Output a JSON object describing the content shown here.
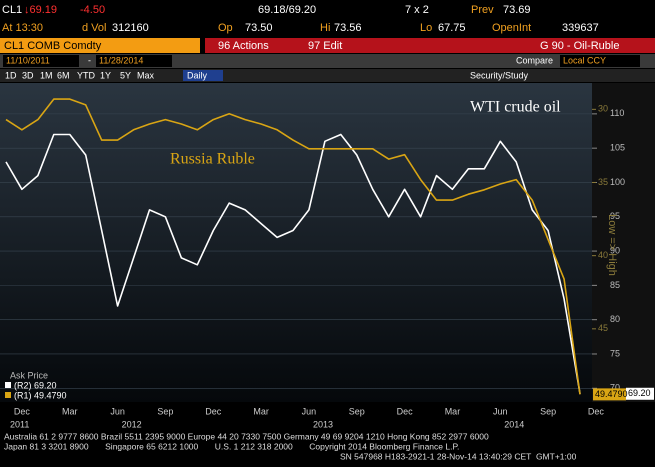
{
  "header": {
    "ticker": "CL1",
    "last": "↓69.19",
    "change": "-4.50",
    "bid_ask": "69.18/69.20",
    "size": "7 x 2",
    "prev_label": "Prev",
    "prev": "73.69",
    "time": "At 13:30",
    "vol_label": "d Vol",
    "vol": "312160",
    "open_label": "Op",
    "open": "73.50",
    "high_label": "Hi",
    "high": "73.56",
    "low_label": "Lo",
    "low": "67.75",
    "oi_label": "OpenInt",
    "oi": "339637",
    "security": "CL1 COMB Comdty",
    "actions": "96 Actions",
    "edit": "97 Edit",
    "page": "G 90 - Oil-Ruble",
    "start_date": "11/10/2011",
    "date_sep": "-",
    "end_date": "11/28/2014",
    "compare": "Compare",
    "currency": "Local CCY",
    "ranges": [
      "1D",
      "3D",
      "1M",
      "6M",
      "YTD",
      "1Y",
      "5Y",
      "Max"
    ],
    "period": "Daily",
    "study": "Security/Study"
  },
  "chart_data": {
    "type": "line",
    "annotation": "Low => High",
    "legend_title": "Ask Price",
    "legend_labels": [
      "(R2) 69.20",
      "(R1) 49.4790"
    ],
    "categories": [
      null,
      "Dec",
      null,
      null,
      "Mar",
      null,
      null,
      "Jun",
      null,
      null,
      "Sep",
      null,
      null,
      "Dec",
      null,
      null,
      "Mar",
      null,
      null,
      "Jun",
      null,
      null,
      "Sep",
      null,
      null,
      "Dec",
      null,
      null,
      "Mar",
      null,
      null,
      "Jun",
      null,
      null,
      "Sep",
      null,
      null,
      "Dec"
    ],
    "years": [
      "2011",
      "2012",
      "2013",
      "2014"
    ],
    "series": [
      {
        "name": "WTI crude oil",
        "color": "#ffffff",
        "axis": "y",
        "end_label": "69.20",
        "values": [
          103,
          99,
          101,
          107,
          107,
          104,
          93,
          82,
          89,
          96,
          95,
          89,
          88,
          93,
          97,
          96,
          94,
          92,
          93,
          96,
          106,
          107,
          104,
          99,
          95,
          99,
          95,
          101,
          99,
          102,
          102,
          106,
          103,
          96,
          93,
          83,
          69.2,
          null
        ]
      },
      {
        "name": "Russia Ruble",
        "color": "#d9a514",
        "axis": "y2",
        "end_label": "49.4790",
        "values": [
          30.7,
          31.4,
          30.7,
          29.3,
          29.3,
          29.7,
          32.1,
          32.1,
          31.4,
          31.0,
          30.7,
          31.0,
          31.4,
          30.7,
          30.3,
          30.7,
          31.0,
          31.4,
          32.1,
          32.7,
          32.7,
          32.7,
          32.7,
          32.7,
          33.4,
          33.1,
          34.8,
          36.2,
          36.2,
          35.8,
          35.5,
          35.1,
          34.8,
          36.2,
          38.9,
          41.6,
          49.479,
          null
        ]
      }
    ],
    "ylim": [
      68,
      114.5
    ],
    "yticks": [
      70,
      75,
      80,
      85,
      90,
      95,
      100,
      105,
      110
    ],
    "y2lim": [
      50,
      28.2
    ],
    "y2ticks": [
      30,
      35,
      40,
      45
    ],
    "grid": true
  },
  "footer": {
    "lines": [
      "Australia 61 2 9777 8600 Brazil 5511 2395 9000 Europe 44 20 7330 7500 Germany 49 69 9204 1210 Hong Kong 852 2977 6000",
      "Japan 81 3 3201 8900       Singapore 65 6212 1000       U.S. 1 212 318 2000       Copyright 2014 Bloomberg Finance L.P.",
      "SN 547968 H183-2921-1 28-Nov-14 13:40:29 CET  GMT+1:00"
    ]
  }
}
